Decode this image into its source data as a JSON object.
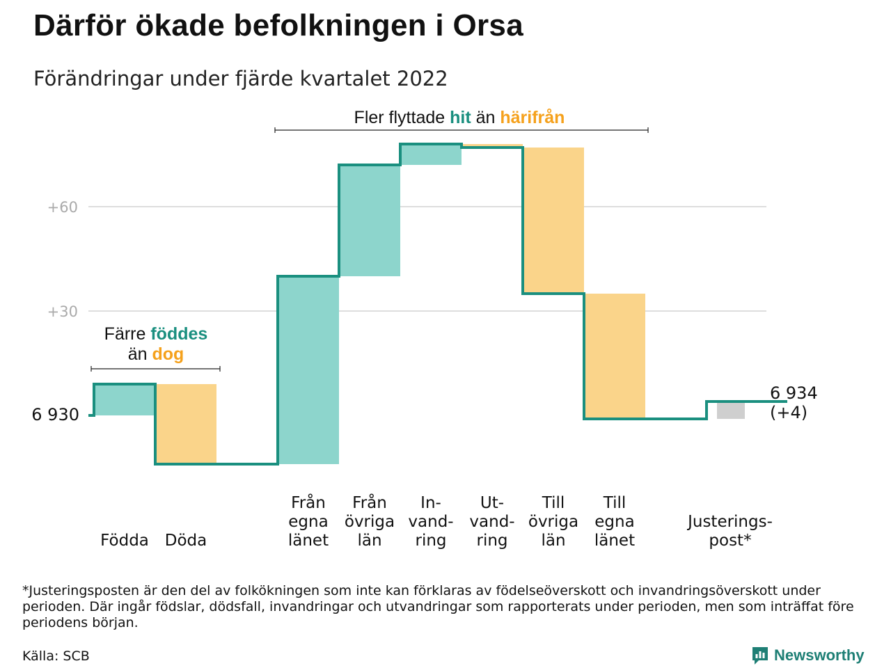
{
  "title": "Därför ökade befolkningen i Orsa",
  "subtitle": "Förändringar under fjärde kvartalet 2022",
  "colors": {
    "inflow": "#8dd5cc",
    "outflow": "#fad48a",
    "adjustment": "#cfcfcf",
    "line": "#1a8f7f",
    "accent_teal": "#1a8f7f",
    "accent_orange": "#f5a11c",
    "grid": "#dddddd",
    "tick": "#aaaaaa"
  },
  "annotations": {
    "left": {
      "line1_pre": "Färre ",
      "line1_hl": "föddes",
      "line2_pre": "än ",
      "line2_hl": "dog"
    },
    "top": {
      "pre": "Fler flyttade ",
      "hl1": "hit",
      "mid": " än ",
      "hl2": "härifrån"
    }
  },
  "chart_data": {
    "type": "waterfall",
    "start_value": 6930,
    "start_label": "6 930",
    "end_label": "6 934",
    "end_change_label": "(+4)",
    "yticks": [
      {
        "value": 30,
        "label": "+30"
      },
      {
        "value": 60,
        "label": "+60"
      }
    ],
    "grid": true,
    "steps": [
      {
        "category": "Födda",
        "label_lines": [
          "Födda"
        ],
        "from": 0,
        "to": 9,
        "kind": "inflow"
      },
      {
        "category": "Döda",
        "label_lines": [
          "Döda"
        ],
        "from": 9,
        "to": -14,
        "kind": "outflow"
      },
      {
        "category": "",
        "label_lines": [],
        "from": -14,
        "to": -14,
        "kind": "none"
      },
      {
        "category": "Från egna länet",
        "label_lines": [
          "Från",
          "egna",
          "länet"
        ],
        "from": -14,
        "to": 40,
        "kind": "inflow"
      },
      {
        "category": "Från övriga län",
        "label_lines": [
          "Från",
          "övriga",
          "län"
        ],
        "from": 40,
        "to": 72,
        "kind": "inflow"
      },
      {
        "category": "In-vand-ring",
        "label_lines": [
          "In-",
          "vand-",
          "ring"
        ],
        "from": 72,
        "to": 78,
        "kind": "inflow"
      },
      {
        "category": "Ut-vand-ring",
        "label_lines": [
          "Ut-",
          "vand-",
          "ring"
        ],
        "from": 78,
        "to": 77,
        "kind": "outflow"
      },
      {
        "category": "Till övriga län",
        "label_lines": [
          "Till",
          "övriga",
          "län"
        ],
        "from": 77,
        "to": 35,
        "kind": "outflow"
      },
      {
        "category": "Till egna länet",
        "label_lines": [
          "Till",
          "egna",
          "länet"
        ],
        "from": 35,
        "to": -1,
        "kind": "outflow"
      },
      {
        "category": "",
        "label_lines": [],
        "from": -1,
        "to": -1,
        "kind": "none"
      },
      {
        "category": "Justerings-post*",
        "label_lines": [
          "Justerings-",
          "post*"
        ],
        "from": -1,
        "to": 4,
        "kind": "adjustment"
      }
    ]
  },
  "footnote": "*Justeringsposten är den del av folkökningen som inte kan förklaras av födelseöverskott och invandringsöverskott under perioden. Där ingår födslar, dödsfall, invandringar och utvandringar som rapporterats under perioden, men som inträffat före periodens början.",
  "source": "Källa: SCB",
  "brand": {
    "name": "Newsworthy",
    "icon": "newsworthy-logo-icon"
  }
}
